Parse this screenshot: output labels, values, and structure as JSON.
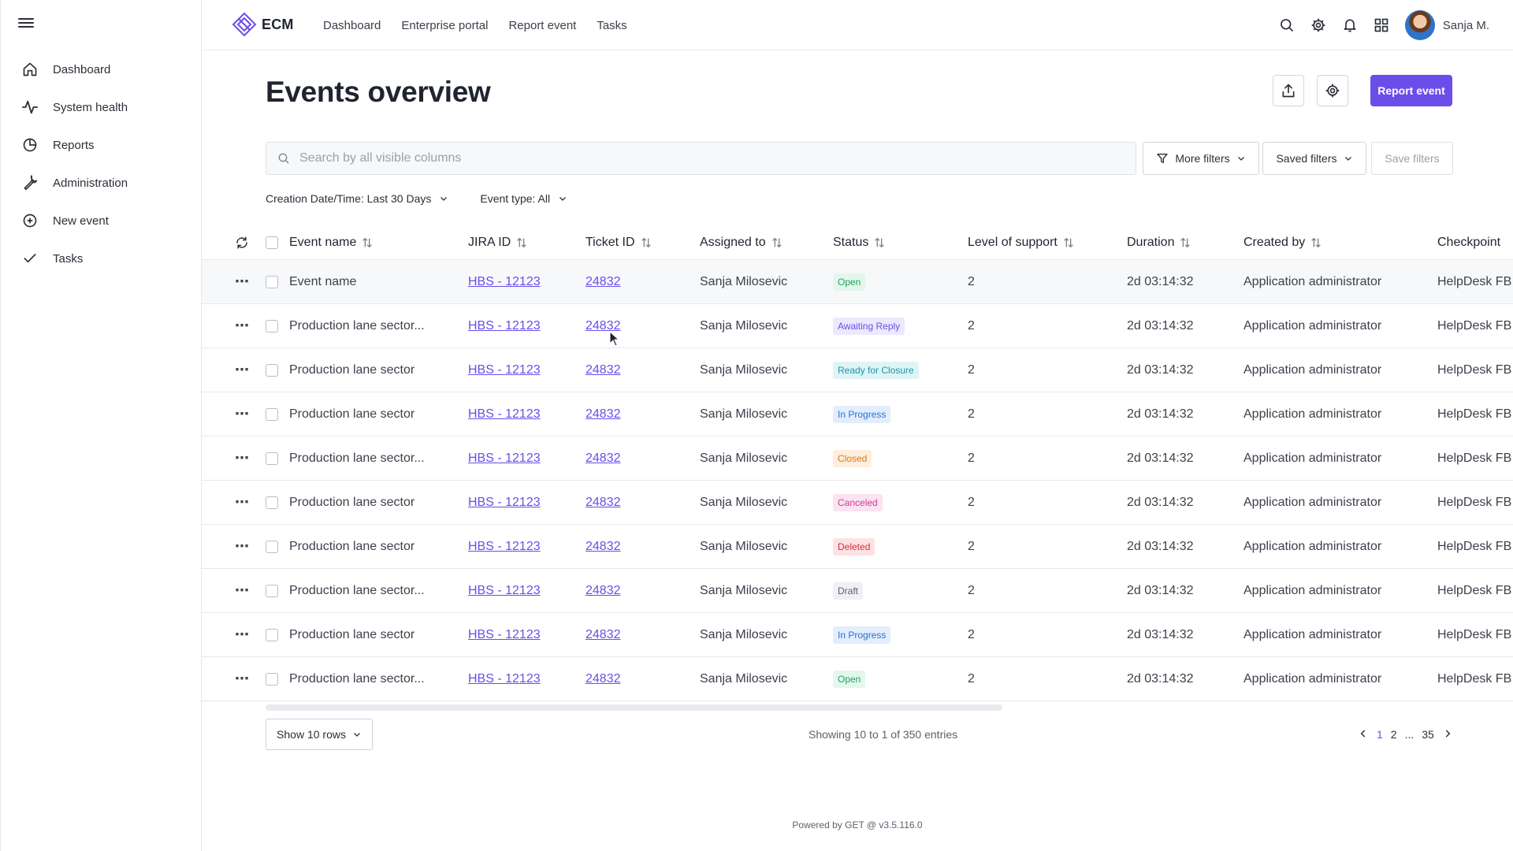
{
  "app": {
    "logo_text": "ECM",
    "user_name": "Sanja M."
  },
  "sidebar": {
    "items": [
      {
        "label": "Dashboard",
        "icon": "home-icon"
      },
      {
        "label": "System health",
        "icon": "pulse-icon"
      },
      {
        "label": "Reports",
        "icon": "pie-chart-icon"
      },
      {
        "label": "Administration",
        "icon": "wrench-icon"
      },
      {
        "label": "New event",
        "icon": "plus-circle-icon"
      },
      {
        "label": "Tasks",
        "icon": "check-icon"
      }
    ]
  },
  "topnav": {
    "items": [
      "Dashboard",
      "Enterprise portal",
      "Report event",
      "Tasks"
    ]
  },
  "page": {
    "title": "Events overview",
    "report_button": "Report event",
    "search_placeholder": "Search by all visible columns",
    "more_filters": "More filters",
    "saved_filters": "Saved filters",
    "save_filters": "Save filters",
    "chip_date": "Creation Date/Time: Last 30 Days",
    "chip_type": "Event type: All"
  },
  "table": {
    "columns": [
      "Event name",
      "JIRA ID",
      "Ticket ID",
      "Assigned to",
      "Status",
      "Level of support",
      "Duration",
      "Created by",
      "Checkpoint"
    ],
    "rows": [
      {
        "name": "Event name",
        "jira": "HBS - 12123",
        "ticket": "24832",
        "assigned": "Sanja Milosevic",
        "status": "Open",
        "level": "2",
        "duration": "2d 03:14:32",
        "created": "Application administrator",
        "checkpoint": "HelpDesk FB"
      },
      {
        "name": "Production lane sector...",
        "jira": "HBS - 12123",
        "ticket": "24832",
        "assigned": "Sanja Milosevic",
        "status": "Awaiting Reply",
        "level": "2",
        "duration": "2d 03:14:32",
        "created": "Application administrator",
        "checkpoint": "HelpDesk FB"
      },
      {
        "name": "Production lane sector",
        "jira": "HBS - 12123",
        "ticket": "24832",
        "assigned": "Sanja Milosevic",
        "status": "Ready for Closure",
        "level": "2",
        "duration": "2d 03:14:32",
        "created": "Application administrator",
        "checkpoint": "HelpDesk FB"
      },
      {
        "name": "Production lane sector",
        "jira": "HBS - 12123",
        "ticket": "24832",
        "assigned": "Sanja Milosevic",
        "status": "In Progress",
        "level": "2",
        "duration": "2d 03:14:32",
        "created": "Application administrator",
        "checkpoint": "HelpDesk FB"
      },
      {
        "name": "Production lane sector...",
        "jira": "HBS - 12123",
        "ticket": "24832",
        "assigned": "Sanja Milosevic",
        "status": "Closed",
        "level": "2",
        "duration": "2d 03:14:32",
        "created": "Application administrator",
        "checkpoint": "HelpDesk FB"
      },
      {
        "name": "Production lane sector",
        "jira": "HBS - 12123",
        "ticket": "24832",
        "assigned": "Sanja Milosevic",
        "status": "Canceled",
        "level": "2",
        "duration": "2d 03:14:32",
        "created": "Application administrator",
        "checkpoint": "HelpDesk FB"
      },
      {
        "name": "Production lane sector",
        "jira": "HBS - 12123",
        "ticket": "24832",
        "assigned": "Sanja Milosevic",
        "status": "Deleted",
        "level": "2",
        "duration": "2d 03:14:32",
        "created": "Application administrator",
        "checkpoint": "HelpDesk FB"
      },
      {
        "name": "Production lane sector...",
        "jira": "HBS - 12123",
        "ticket": "24832",
        "assigned": "Sanja Milosevic",
        "status": "Draft",
        "level": "2",
        "duration": "2d 03:14:32",
        "created": "Application administrator",
        "checkpoint": "HelpDesk FB"
      },
      {
        "name": "Production lane sector",
        "jira": "HBS - 12123",
        "ticket": "24832",
        "assigned": "Sanja Milosevic",
        "status": "In Progress",
        "level": "2",
        "duration": "2d 03:14:32",
        "created": "Application administrator",
        "checkpoint": "HelpDesk FB"
      },
      {
        "name": "Production lane sector...",
        "jira": "HBS - 12123",
        "ticket": "24832",
        "assigned": "Sanja Milosevic",
        "status": "Open",
        "level": "2",
        "duration": "2d 03:14:32",
        "created": "Application administrator",
        "checkpoint": "HelpDesk FB"
      }
    ]
  },
  "status_colors": {
    "Open": {
      "bg": "#e3f7ec",
      "fg": "#1fa463"
    },
    "Awaiting Reply": {
      "bg": "#ece8fd",
      "fg": "#6b4dea"
    },
    "Ready for Closure": {
      "bg": "#dff4f6",
      "fg": "#1d97a6"
    },
    "In Progress": {
      "bg": "#e2eefc",
      "fg": "#2b6fd6"
    },
    "Closed": {
      "bg": "#fdeedd",
      "fg": "#e07b12"
    },
    "Canceled": {
      "bg": "#fbe3f1",
      "fg": "#d6369a"
    },
    "Deleted": {
      "bg": "#fde2e4",
      "fg": "#d92d3a"
    },
    "Draft": {
      "bg": "#eef0f3",
      "fg": "#5b616d"
    }
  },
  "pagination": {
    "rows_label": "Show 10 rows",
    "showing": "Showing 10 to 1 of 350 entries",
    "pages": [
      "1",
      "2",
      "...",
      "35"
    ]
  },
  "footer": "Powered by GET @ v3.5.116.0",
  "colors": {
    "accent": "#6b4dea"
  }
}
